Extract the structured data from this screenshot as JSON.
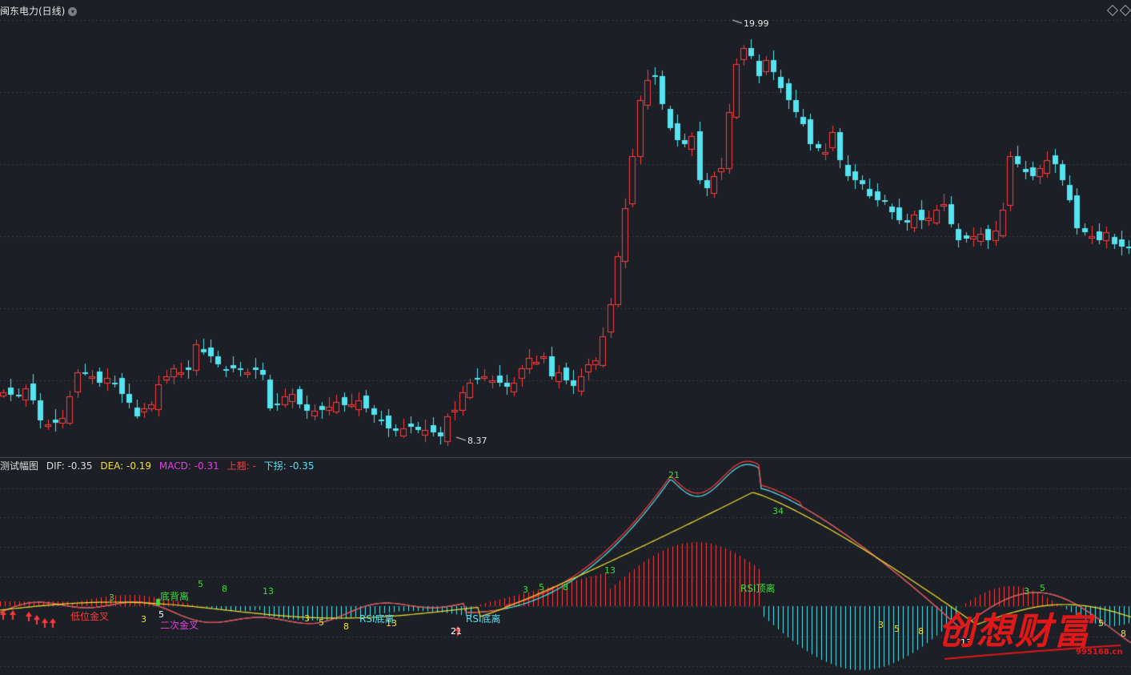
{
  "main_header": {
    "title": "闽东电力(日线)",
    "dropdown_icon": "chevron-down-icon"
  },
  "sub_header": {
    "indicator_name": "测试幅图",
    "dif_label": "DIF: -0.35",
    "dea_label": "DEA: -0.19",
    "macd_label": "MACD: -0.31",
    "up_label": "上翘: -",
    "down_label": "下拐: -0.35"
  },
  "price_annotations": {
    "high": "19.99",
    "low": "8.37"
  },
  "signal_labels": {
    "low_golden_cross": "低位金叉",
    "second_golden_cross": "二次金叉",
    "bottom_divergence": "底背离",
    "rsi_bottom_div_1": "RSI底离",
    "rsi_bottom_div_2": "RSI底离",
    "rsi_top_div": "RSI顶离"
  },
  "counts": [
    {
      "text": "3",
      "c": "green"
    },
    {
      "text": "3",
      "c": "yellow"
    },
    {
      "text": "5",
      "c": "white"
    },
    {
      "text": "5",
      "c": "green"
    },
    {
      "text": "8",
      "c": "green"
    },
    {
      "text": "13",
      "c": "green"
    },
    {
      "text": "3",
      "c": "yellow"
    },
    {
      "text": "5",
      "c": "yellow"
    },
    {
      "text": "8",
      "c": "yellow"
    },
    {
      "text": "13",
      "c": "yellow"
    },
    {
      "text": "21",
      "c": "white"
    },
    {
      "text": "3",
      "c": "green"
    },
    {
      "text": "5",
      "c": "green"
    },
    {
      "text": "8",
      "c": "green"
    },
    {
      "text": "13",
      "c": "green"
    },
    {
      "text": "21",
      "c": "green"
    },
    {
      "text": "34",
      "c": "green"
    },
    {
      "text": "3",
      "c": "yellow"
    },
    {
      "text": "5",
      "c": "yellow"
    },
    {
      "text": "8",
      "c": "yellow"
    },
    {
      "text": "13",
      "c": "white"
    },
    {
      "text": "3",
      "c": "green"
    },
    {
      "text": "5",
      "c": "green"
    },
    {
      "text": "5",
      "c": "yellow"
    },
    {
      "text": "8",
      "c": "yellow"
    }
  ],
  "watermark": {
    "text": "创想财富",
    "url": "995168.cn"
  },
  "colors": {
    "up": "#ff3b3b",
    "down": "#54e3ef",
    "dif": "#e33",
    "dea": "#f0e030",
    "count_green": "#3ddc3d",
    "count_yellow": "#f0e030"
  }
}
